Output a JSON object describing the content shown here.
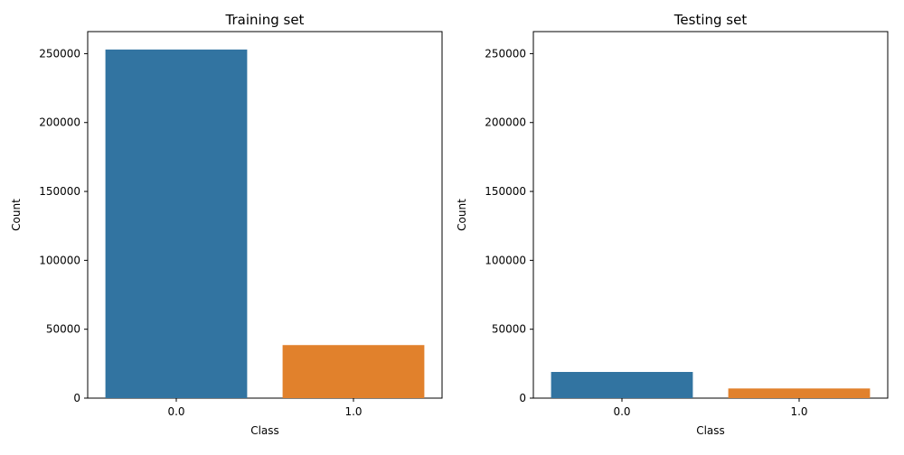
{
  "chart_data": [
    {
      "type": "bar",
      "title": "Training set",
      "xlabel": "Class",
      "ylabel": "Count",
      "categories": [
        "0.0",
        "1.0"
      ],
      "values": [
        253000,
        38500
      ],
      "colors": [
        "#3274a1",
        "#e1812c"
      ],
      "ylim": [
        0,
        266000
      ],
      "yticks": [
        0,
        50000,
        100000,
        150000,
        200000,
        250000
      ],
      "ytick_labels": [
        "0",
        "50000",
        "100000",
        "150000",
        "200000",
        "250000"
      ],
      "grid": false,
      "legend": "none"
    },
    {
      "type": "bar",
      "title": "Testing set",
      "xlabel": "Class",
      "ylabel": "Count",
      "categories": [
        "0.0",
        "1.0"
      ],
      "values": [
        19000,
        7000
      ],
      "colors": [
        "#3274a1",
        "#e1812c"
      ],
      "ylim": [
        0,
        266000
      ],
      "yticks": [
        0,
        50000,
        100000,
        150000,
        200000,
        250000
      ],
      "ytick_labels": [
        "0",
        "50000",
        "100000",
        "150000",
        "200000",
        "250000"
      ],
      "grid": false,
      "legend": "none"
    }
  ]
}
